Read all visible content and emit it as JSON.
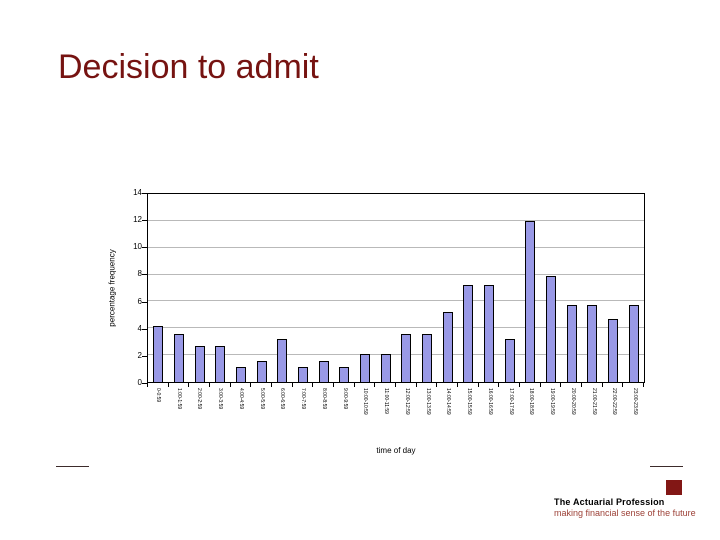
{
  "slide": {
    "title": "Decision to admit",
    "title_color": "#761311"
  },
  "chart_data": {
    "type": "bar",
    "title": "",
    "xlabel": "time of day",
    "ylabel": "percentage frequency",
    "ylim": [
      0,
      14
    ],
    "yticks": [
      0,
      2,
      4,
      6,
      8,
      10,
      12,
      14
    ],
    "grid": true,
    "legend": "none",
    "bar_fill_color": "#9999e6",
    "bar_border_color": "#000000",
    "gridline_color": "#b9b9b9",
    "categories": [
      "0-0:59",
      "1:00-1:59",
      "2:00-2:59",
      "3:00-3:59",
      "4:00-4:59",
      "5:00-5:59",
      "6:00-6:59",
      "7:00-7:59",
      "8:00-8:59",
      "9:00-9:59",
      "10:00-10:59",
      "11:00-11:59",
      "12:00-12:59",
      "13:00-13:59",
      "14:00-14:59",
      "15:00-15:59",
      "16:00-16:59",
      "17:00-17:59",
      "18:00-18:59",
      "19:00-19:59",
      "20:00-20:59",
      "21:00-21:59",
      "22:00-22:59",
      "23:00-23:59"
    ],
    "values": [
      4.2,
      3.6,
      2.7,
      2.7,
      1.1,
      1.6,
      3.2,
      1.1,
      1.6,
      1.1,
      2.1,
      2.1,
      3.6,
      3.6,
      5.2,
      7.2,
      7.2,
      3.2,
      12.0,
      7.9,
      5.7,
      5.7,
      4.7,
      5.7
    ]
  },
  "logo": {
    "name": "The Actuarial Profession",
    "tagline": "making financial sense of the future",
    "square_color": "#821715"
  }
}
